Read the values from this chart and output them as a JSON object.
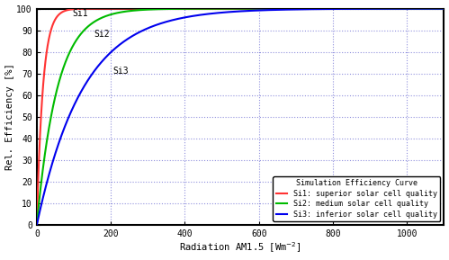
{
  "title": "",
  "xlabel": "Radiation AM1.5 [Wm",
  "xlabel_sup": "⁻²",
  "ylabel": "Rel. Efficiency [%]",
  "xlim": [
    0,
    1100
  ],
  "ylim": [
    0,
    100
  ],
  "xticks": [
    0,
    200,
    400,
    600,
    800,
    1000
  ],
  "yticks": [
    0,
    10,
    20,
    30,
    40,
    50,
    60,
    70,
    80,
    90,
    100
  ],
  "grid_color": "#2222bb",
  "grid_alpha": 0.5,
  "background_color": "#ffffff",
  "curve_S1": {
    "color": "#ff3333",
    "k": 0.06,
    "label": "Si1: superior solar cell quality"
  },
  "curve_S2": {
    "color": "#00bb00",
    "k": 0.018,
    "label": "Si2: medium solar cell quality"
  },
  "curve_S3": {
    "color": "#0000ee",
    "k": 0.008,
    "label": "Si3: inferior solar cell quality"
  },
  "legend_title": "Simulation Efficiency Curve",
  "label_S1": "Si1",
  "label_S2": "Si2",
  "label_S3": "Si3",
  "lw": 1.5
}
